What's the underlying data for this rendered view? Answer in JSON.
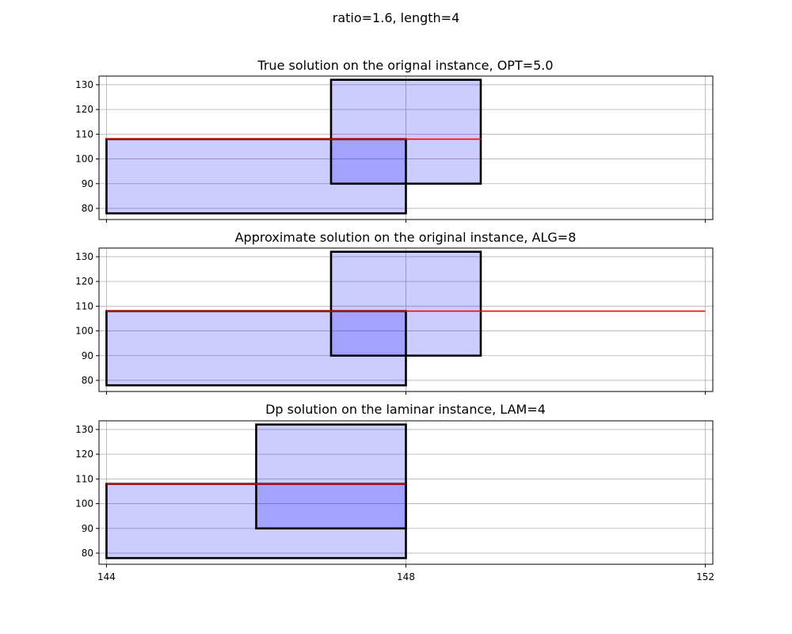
{
  "figure": {
    "suptitle": "ratio=1.6, length=4"
  },
  "colors": {
    "rect_fill": "#0000ff",
    "rect_fill_opacity": 0.2,
    "rect_edge": "#000000",
    "red_line": "#ff0000",
    "grid": "#b0b0b0"
  },
  "chart_data": [
    {
      "type": "rectangles",
      "title": "True solution on the orignal instance, OPT=5.0",
      "xlim": [
        143.9,
        152.1
      ],
      "ylim": [
        75.5,
        133.5
      ],
      "xticks": [
        144,
        148,
        152
      ],
      "yticks": [
        80,
        90,
        100,
        110,
        120,
        130
      ],
      "show_xtick_labels": false,
      "grid": true,
      "rectangles": [
        {
          "x0": 144,
          "x1": 148,
          "y0": 78,
          "y1": 108
        },
        {
          "x0": 147,
          "x1": 149,
          "y0": 90,
          "y1": 132
        }
      ],
      "bold_outline": [
        {
          "x0": 144,
          "x1": 148,
          "y0": 78,
          "y1": 108
        },
        {
          "x0": 147,
          "x1": 149,
          "y0": 90,
          "y1": 132
        }
      ],
      "red_line": {
        "x0": 144,
        "x1": 149,
        "y": 108
      }
    },
    {
      "type": "rectangles",
      "title": "Approximate solution on the original instance, ALG=8",
      "xlim": [
        143.9,
        152.1
      ],
      "ylim": [
        75.5,
        133.5
      ],
      "xticks": [
        144,
        148,
        152
      ],
      "yticks": [
        80,
        90,
        100,
        110,
        120,
        130
      ],
      "show_xtick_labels": false,
      "grid": true,
      "rectangles": [
        {
          "x0": 144,
          "x1": 148,
          "y0": 78,
          "y1": 108
        },
        {
          "x0": 147,
          "x1": 149,
          "y0": 90,
          "y1": 132
        }
      ],
      "bold_outline": [
        {
          "x0": 144,
          "x1": 148,
          "y0": 78,
          "y1": 108
        },
        {
          "x0": 147,
          "x1": 149,
          "y0": 90,
          "y1": 132
        }
      ],
      "red_line": {
        "x0": 144,
        "x1": 152,
        "y": 108
      }
    },
    {
      "type": "rectangles",
      "title": "Dp solution on the laminar instance, LAM=4",
      "xlim": [
        143.9,
        152.1
      ],
      "ylim": [
        75.5,
        133.5
      ],
      "xticks": [
        144,
        148,
        152
      ],
      "xtick_labels": [
        "144",
        "148",
        "152"
      ],
      "yticks": [
        80,
        90,
        100,
        110,
        120,
        130
      ],
      "show_xtick_labels": true,
      "grid": true,
      "rectangles": [
        {
          "x0": 144,
          "x1": 148,
          "y0": 78,
          "y1": 108
        },
        {
          "x0": 146,
          "x1": 148,
          "y0": 90,
          "y1": 132
        }
      ],
      "bold_outline": [
        {
          "x0": 144,
          "x1": 148,
          "y0": 78,
          "y1": 108
        },
        {
          "x0": 146,
          "x1": 148,
          "y0": 90,
          "y1": 132
        }
      ],
      "red_line": {
        "x0": 144,
        "x1": 148,
        "y": 108
      }
    }
  ]
}
